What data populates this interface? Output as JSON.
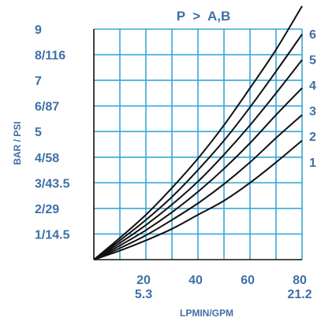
{
  "chart_data": {
    "type": "line",
    "title": "P  >  A,B",
    "xlabel": "LPMIN/GPM",
    "ylabel": "BAR / PSI",
    "xlim": [
      0,
      80
    ],
    "ylim": [
      0,
      9
    ],
    "grid": true,
    "x_ticks": [
      {
        "value": 20,
        "label": "20",
        "label2": "5.3"
      },
      {
        "value": 40,
        "label": "40",
        "label2": ""
      },
      {
        "value": 60,
        "label": "60",
        "label2": ""
      },
      {
        "value": 80,
        "label": "80",
        "label2": "21.2"
      }
    ],
    "y_ticks": [
      {
        "value": 1,
        "label": "1/14.5"
      },
      {
        "value": 2,
        "label": "2/29"
      },
      {
        "value": 3,
        "label": "3/43.5"
      },
      {
        "value": 4,
        "label": "4/58"
      },
      {
        "value": 5,
        "label": "5"
      },
      {
        "value": 6,
        "label": "6/87"
      },
      {
        "value": 7,
        "label": "7"
      },
      {
        "value": 8,
        "label": "8/116"
      },
      {
        "value": 9,
        "label": "9"
      }
    ],
    "series": [
      {
        "name": "1",
        "x": [
          0,
          10,
          20,
          30,
          40,
          50,
          60,
          70,
          80
        ],
        "y": [
          0,
          0.35,
          0.75,
          1.2,
          1.75,
          2.3,
          3.0,
          3.8,
          4.65
        ]
      },
      {
        "name": "2",
        "x": [
          0,
          10,
          20,
          30,
          40,
          50,
          60,
          70,
          80
        ],
        "y": [
          0,
          0.45,
          0.95,
          1.55,
          2.2,
          2.95,
          3.8,
          4.75,
          5.65
        ]
      },
      {
        "name": "3",
        "x": [
          0,
          10,
          20,
          30,
          40,
          50,
          60,
          70,
          80
        ],
        "y": [
          0,
          0.55,
          1.15,
          1.85,
          2.65,
          3.55,
          4.55,
          5.65,
          6.7
        ]
      },
      {
        "name": "4",
        "x": [
          0,
          10,
          20,
          30,
          40,
          50,
          60,
          70,
          80
        ],
        "y": [
          0,
          0.65,
          1.35,
          2.15,
          3.05,
          4.1,
          5.25,
          6.5,
          7.8
        ]
      },
      {
        "name": "5",
        "x": [
          0,
          10,
          20,
          30,
          40,
          50,
          60,
          70,
          80
        ],
        "y": [
          0,
          0.75,
          1.55,
          2.45,
          3.5,
          4.65,
          5.95,
          7.35,
          8.8
        ]
      },
      {
        "name": "6",
        "x": [
          0,
          10,
          20,
          30,
          40,
          50,
          60,
          70,
          80
        ],
        "y": [
          0,
          0.85,
          1.75,
          2.8,
          3.95,
          5.25,
          6.7,
          8.2,
          9.9
        ]
      }
    ],
    "series_label_positions": [
      {
        "name": "1",
        "value": 4
      },
      {
        "name": "2",
        "value": 5
      },
      {
        "name": "3",
        "value": 6
      },
      {
        "name": "4",
        "value": 7
      },
      {
        "name": "5",
        "value": 8
      },
      {
        "name": "6",
        "value": 9
      }
    ]
  }
}
